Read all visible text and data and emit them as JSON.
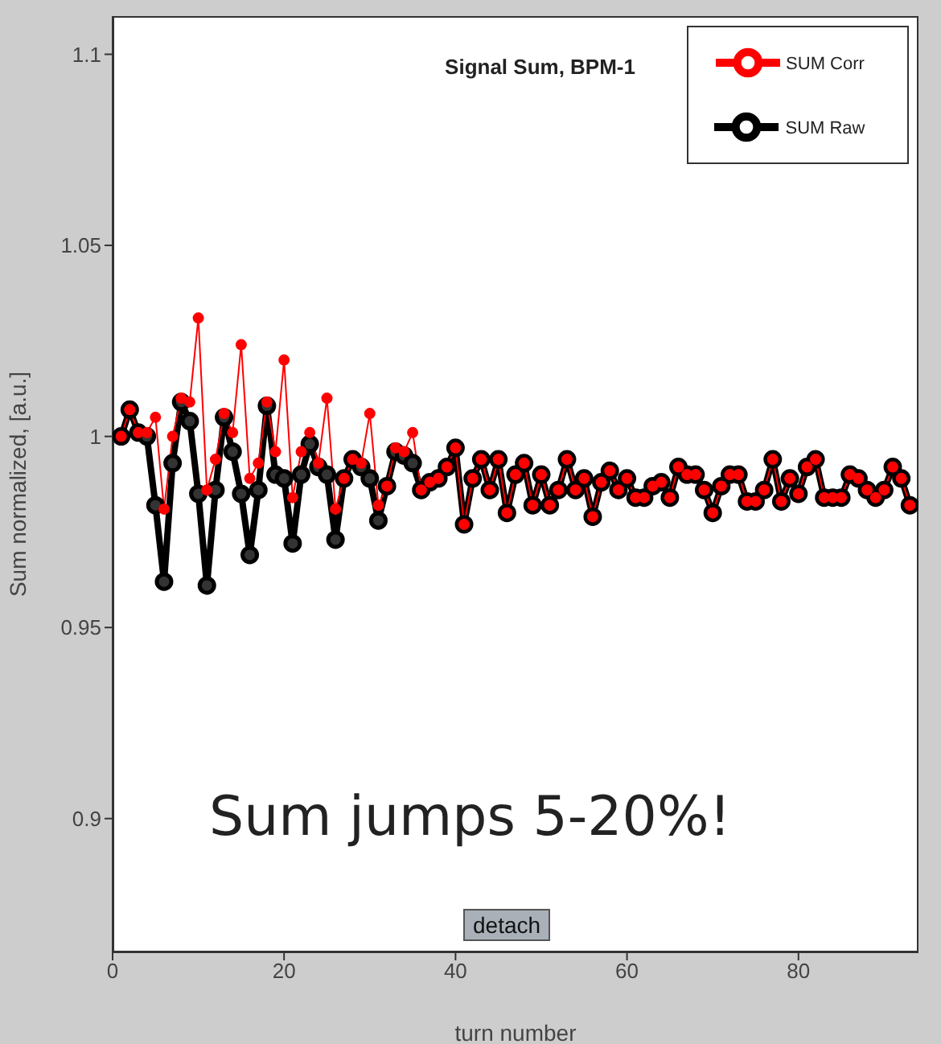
{
  "chart_data": {
    "type": "line",
    "title": "Signal Sum, BPM-1",
    "xlabel": "turn number",
    "ylabel": "Sum normalized, [a.u.]",
    "annotations": [
      "Sum jumps 5-20%!",
      "detach"
    ],
    "x": [
      1,
      2,
      3,
      4,
      5,
      6,
      7,
      8,
      9,
      10,
      11,
      12,
      13,
      14,
      15,
      16,
      17,
      18,
      19,
      20,
      21,
      22,
      23,
      24,
      25,
      26,
      27,
      28,
      29,
      30,
      31,
      32,
      33,
      34,
      35,
      36,
      37,
      38,
      39,
      40,
      41,
      42,
      43,
      44,
      45,
      46,
      47,
      48,
      49,
      50,
      51,
      52,
      53,
      54,
      55,
      56,
      57,
      58,
      59,
      60,
      61,
      62,
      63,
      64,
      65,
      66,
      67,
      68,
      69,
      70,
      71,
      72,
      73,
      74,
      75,
      76,
      77,
      78,
      79,
      80,
      81,
      82,
      83,
      84,
      85,
      86,
      87,
      88,
      89,
      90,
      91,
      92,
      93
    ],
    "series": [
      {
        "name": "SUM Raw",
        "color": "#000000",
        "values": [
          1.0,
          1.007,
          1.001,
          1.0,
          0.982,
          0.962,
          0.993,
          1.009,
          1.004,
          0.985,
          0.961,
          0.986,
          1.005,
          0.996,
          0.985,
          0.969,
          0.986,
          1.008,
          0.99,
          0.989,
          0.972,
          0.99,
          0.998,
          0.992,
          0.99,
          0.973,
          0.989,
          0.994,
          0.992,
          0.989,
          0.978,
          0.987,
          0.996,
          0.995,
          0.993,
          0.986,
          0.988,
          0.989,
          0.992,
          0.997,
          0.977,
          0.989,
          0.994,
          0.986,
          0.994,
          0.98,
          0.99,
          0.993,
          0.982,
          0.99,
          0.982,
          0.986,
          0.994,
          0.986,
          0.989,
          0.979,
          0.988,
          0.991,
          0.986,
          0.989,
          0.984,
          0.984,
          0.987,
          0.988,
          0.984,
          0.992,
          0.99,
          0.99,
          0.986,
          0.98,
          0.987,
          0.99,
          0.99,
          0.983,
          0.983,
          0.986,
          0.994,
          0.983,
          0.989,
          0.985,
          0.992,
          0.994,
          0.984,
          0.984,
          0.984,
          0.99,
          0.989,
          0.986,
          0.984,
          0.986,
          0.992,
          0.989,
          0.982
        ]
      },
      {
        "name": "SUM Corr",
        "color": "#ff0000",
        "values": [
          1.0,
          1.007,
          1.001,
          1.001,
          1.005,
          0.981,
          1.0,
          1.01,
          1.009,
          1.031,
          0.986,
          0.994,
          1.006,
          1.001,
          1.024,
          0.989,
          0.993,
          1.009,
          0.996,
          1.02,
          0.984,
          0.996,
          1.001,
          0.993,
          1.01,
          0.981,
          0.989,
          0.994,
          0.993,
          1.006,
          0.982,
          0.987,
          0.997,
          0.996,
          1.001,
          0.986,
          0.988,
          0.989,
          0.992,
          0.997,
          0.977,
          0.989,
          0.994,
          0.986,
          0.994,
          0.98,
          0.99,
          0.993,
          0.982,
          0.99,
          0.982,
          0.986,
          0.994,
          0.986,
          0.989,
          0.979,
          0.988,
          0.991,
          0.986,
          0.989,
          0.984,
          0.984,
          0.987,
          0.988,
          0.984,
          0.992,
          0.99,
          0.99,
          0.986,
          0.98,
          0.987,
          0.99,
          0.99,
          0.983,
          0.983,
          0.986,
          0.994,
          0.983,
          0.989,
          0.985,
          0.992,
          0.994,
          0.984,
          0.984,
          0.984,
          0.99,
          0.989,
          0.986,
          0.984,
          0.986,
          0.992,
          0.989,
          0.982
        ]
      }
    ],
    "xlim": [
      0,
      94
    ],
    "xticks": [
      0,
      20,
      40,
      60,
      80
    ],
    "ylim": [
      0.865,
      1.11
    ],
    "yticks": [
      {
        "value": 0.9,
        "label": "0.9"
      },
      {
        "value": 0.95,
        "label": "0.95"
      },
      {
        "value": 1,
        "label": "1"
      },
      {
        "value": 1.05,
        "label": "1.05"
      },
      {
        "value": 1.1,
        "label": "1.1"
      }
    ],
    "legend": "top right",
    "marker": "circle",
    "line_style": "solid"
  }
}
